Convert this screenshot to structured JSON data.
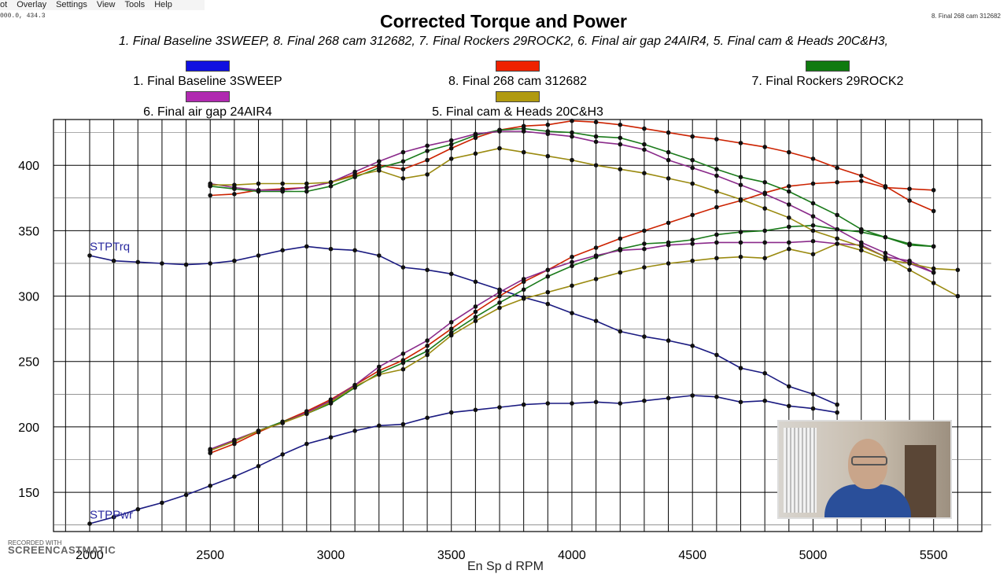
{
  "menubar": {
    "items": [
      "ot",
      "Overlay",
      "Settings",
      "View",
      "Tools",
      "Help"
    ]
  },
  "coord_readout": "000.0, 434.3",
  "corner_text": "8. Final 268 cam 312682",
  "watermark": {
    "line1": "RECORDED WITH",
    "brand": "SCREENCAST",
    "suffix": "MATIC"
  },
  "x_axis_title": "En Sp d RPM",
  "chart_data": {
    "type": "line",
    "title": "Corrected Torque and Power",
    "subtitle": "1. Final Baseline 3SWEEP, 8. Final 268 cam 312682, 7. Final Rockers 29ROCK2, 6. Final air gap 24AIR4, 5. Final cam & Heads 20C&H3,",
    "xlim": [
      1850,
      5700
    ],
    "ylim": [
      120,
      435
    ],
    "x_ticks": [
      2000,
      2500,
      3000,
      3500,
      4000,
      4500,
      5000,
      5500
    ],
    "x_tick_labels": [
      "2000",
      "2500",
      "3000",
      "3500",
      "4000",
      "4500",
      "5000",
      "5500"
    ],
    "y_ticks": [
      150,
      200,
      250,
      300,
      350,
      400
    ],
    "grid": true,
    "legend_position": "top",
    "annotations": [
      {
        "text": "STPTrq",
        "x": 2000,
        "y": 335
      },
      {
        "text": "STPPwr",
        "x": 2000,
        "y": 130
      }
    ],
    "series": [
      {
        "name": "1. Final Baseline 3SWEEP",
        "kind": "torque",
        "color": "#1a1a80",
        "swatch": "#1010e0",
        "x": [
          2000,
          2100,
          2200,
          2300,
          2400,
          2500,
          2600,
          2700,
          2800,
          2900,
          3000,
          3100,
          3200,
          3300,
          3400,
          3500,
          3600,
          3700,
          3800,
          3900,
          4000,
          4100,
          4200,
          4300,
          4400,
          4500,
          4600,
          4700,
          4800,
          4900,
          5000,
          5100
        ],
        "y": [
          331,
          327,
          326,
          325,
          324,
          325,
          327,
          331,
          335,
          338,
          336,
          335,
          331,
          322,
          320,
          317,
          311,
          305,
          299,
          294,
          287,
          281,
          273,
          269,
          266,
          262,
          255,
          245,
          241,
          231,
          225,
          217
        ]
      },
      {
        "name": "1. Final Baseline 3SWEEP",
        "kind": "power",
        "color": "#1a1a80",
        "swatch": "#1010e0",
        "x": [
          2000,
          2100,
          2200,
          2300,
          2400,
          2500,
          2600,
          2700,
          2800,
          2900,
          3000,
          3100,
          3200,
          3300,
          3400,
          3500,
          3600,
          3700,
          3800,
          3900,
          4000,
          4100,
          4200,
          4300,
          4400,
          4500,
          4600,
          4700,
          4800,
          4900,
          5000,
          5100
        ],
        "y": [
          126,
          131,
          137,
          142,
          148,
          155,
          162,
          170,
          179,
          187,
          192,
          197,
          201,
          202,
          207,
          211,
          213,
          215,
          217,
          218,
          218,
          219,
          218,
          220,
          222,
          224,
          223,
          219,
          220,
          216,
          214,
          211
        ]
      },
      {
        "name": "8. Final 268 cam 312682",
        "kind": "torque",
        "color": "#cc2200",
        "swatch": "#ee2200",
        "x": [
          2500,
          2600,
          2700,
          2800,
          2900,
          3000,
          3100,
          3200,
          3300,
          3400,
          3500,
          3600,
          3700,
          3800,
          3900,
          4000,
          4100,
          4200,
          4300,
          4400,
          4500,
          4600,
          4700,
          4800,
          4900,
          5000,
          5100,
          5200,
          5300,
          5400,
          5500
        ],
        "y": [
          377,
          378,
          381,
          382,
          383,
          387,
          393,
          400,
          397,
          404,
          413,
          421,
          427,
          430,
          431,
          434,
          433,
          431,
          428,
          425,
          422,
          420,
          417,
          414,
          410,
          405,
          398,
          392,
          384,
          373,
          365
        ]
      },
      {
        "name": "8. Final 268 cam 312682",
        "kind": "power",
        "color": "#cc2200",
        "swatch": "#ee2200",
        "x": [
          2500,
          2600,
          2700,
          2800,
          2900,
          3000,
          3100,
          3200,
          3300,
          3400,
          3500,
          3600,
          3700,
          3800,
          3900,
          4000,
          4100,
          4200,
          4300,
          4400,
          4500,
          4600,
          4700,
          4800,
          4900,
          5000,
          5100,
          5200,
          5300,
          5400,
          5500
        ],
        "y": [
          180,
          187,
          196,
          204,
          212,
          221,
          232,
          243,
          251,
          262,
          275,
          288,
          300,
          311,
          320,
          330,
          337,
          344,
          350,
          356,
          362,
          368,
          373,
          379,
          384,
          386,
          387,
          388,
          383,
          382,
          381
        ]
      },
      {
        "name": "7. Final Rockers 29ROCK2",
        "kind": "torque",
        "color": "#1a7a1a",
        "swatch": "#107a10",
        "x": [
          2500,
          2600,
          2700,
          2800,
          2900,
          3000,
          3100,
          3200,
          3300,
          3400,
          3500,
          3600,
          3700,
          3800,
          3900,
          4000,
          4100,
          4200,
          4300,
          4400,
          4500,
          4600,
          4700,
          4800,
          4900,
          5000,
          5100,
          5200,
          5300,
          5400,
          5500
        ],
        "y": [
          384,
          382,
          380,
          380,
          380,
          384,
          391,
          398,
          403,
          411,
          416,
          423,
          427,
          428,
          426,
          425,
          422,
          421,
          416,
          410,
          404,
          397,
          391,
          387,
          380,
          371,
          362,
          351,
          345,
          339,
          338
        ]
      },
      {
        "name": "7. Final Rockers 29ROCK2",
        "kind": "power",
        "color": "#1a7a1a",
        "swatch": "#107a10",
        "x": [
          2500,
          2600,
          2700,
          2800,
          2900,
          3000,
          3100,
          3200,
          3300,
          3400,
          3500,
          3600,
          3700,
          3800,
          3900,
          4000,
          4100,
          4200,
          4300,
          4400,
          4500,
          4600,
          4700,
          4800,
          4900,
          5000,
          5100,
          5200,
          5300,
          5400,
          5500
        ],
        "y": [
          182,
          189,
          197,
          204,
          210,
          218,
          230,
          241,
          249,
          258,
          272,
          284,
          295,
          305,
          315,
          323,
          330,
          336,
          340,
          341,
          343,
          347,
          349,
          350,
          353,
          354,
          351,
          349,
          345,
          340,
          338
        ]
      },
      {
        "name": "6. Final air gap 24AIR4",
        "kind": "torque",
        "color": "#8a2a8a",
        "swatch": "#b02ab0",
        "x": [
          2500,
          2600,
          2700,
          2800,
          2900,
          3000,
          3100,
          3200,
          3300,
          3400,
          3500,
          3600,
          3700,
          3800,
          3900,
          4000,
          4100,
          4200,
          4300,
          4400,
          4500,
          4600,
          4700,
          4800,
          4900,
          5000,
          5100,
          5200,
          5300,
          5400,
          5500
        ],
        "y": [
          386,
          383,
          381,
          381,
          383,
          387,
          395,
          403,
          410,
          415,
          419,
          424,
          426,
          426,
          424,
          422,
          418,
          416,
          412,
          404,
          398,
          392,
          385,
          378,
          370,
          361,
          351,
          341,
          333,
          325,
          318
        ]
      },
      {
        "name": "6. Final air gap 24AIR4",
        "kind": "power",
        "color": "#8a2a8a",
        "swatch": "#b02ab0",
        "x": [
          2500,
          2600,
          2700,
          2800,
          2900,
          3000,
          3100,
          3200,
          3300,
          3400,
          3500,
          3600,
          3700,
          3800,
          3900,
          4000,
          4100,
          4200,
          4300,
          4400,
          4500,
          4600,
          4700,
          4800,
          4900,
          5000,
          5100,
          5200,
          5300,
          5400,
          5500
        ],
        "y": [
          183,
          190,
          197,
          203,
          211,
          220,
          232,
          246,
          256,
          266,
          280,
          292,
          303,
          313,
          320,
          326,
          331,
          335,
          336,
          339,
          340,
          341,
          341,
          341,
          341,
          342,
          340,
          339,
          330,
          327,
          318
        ]
      },
      {
        "name": "5. Final cam & Heads 20C&H3",
        "kind": "torque",
        "color": "#9a8a10",
        "swatch": "#b09a10",
        "x": [
          2500,
          2600,
          2700,
          2800,
          2900,
          3000,
          3100,
          3200,
          3300,
          3400,
          3500,
          3600,
          3700,
          3800,
          3900,
          4000,
          4100,
          4200,
          4300,
          4400,
          4500,
          4600,
          4700,
          4800,
          4900,
          5000,
          5100,
          5200,
          5300,
          5400,
          5500,
          5600
        ],
        "y": [
          385,
          385,
          386,
          386,
          386,
          387,
          392,
          396,
          390,
          393,
          405,
          409,
          413,
          410,
          407,
          404,
          400,
          397,
          394,
          390,
          386,
          380,
          374,
          367,
          360,
          350,
          344,
          338,
          330,
          320,
          310,
          300
        ]
      },
      {
        "name": "5. Final cam & Heads 20C&H3",
        "kind": "power",
        "color": "#9a8a10",
        "swatch": "#b09a10",
        "x": [
          2500,
          2600,
          2700,
          2800,
          2900,
          3000,
          3100,
          3200,
          3300,
          3400,
          3500,
          3600,
          3700,
          3800,
          3900,
          4000,
          4100,
          4200,
          4300,
          4400,
          4500,
          4600,
          4700,
          4800,
          4900,
          5000,
          5100,
          5200,
          5300,
          5400,
          5500,
          5600
        ],
        "y": [
          182,
          189,
          197,
          203,
          210,
          219,
          231,
          240,
          244,
          255,
          270,
          281,
          291,
          298,
          303,
          308,
          313,
          318,
          322,
          325,
          327,
          329,
          330,
          329,
          336,
          332,
          340,
          335,
          328,
          325,
          321,
          320
        ]
      }
    ]
  }
}
